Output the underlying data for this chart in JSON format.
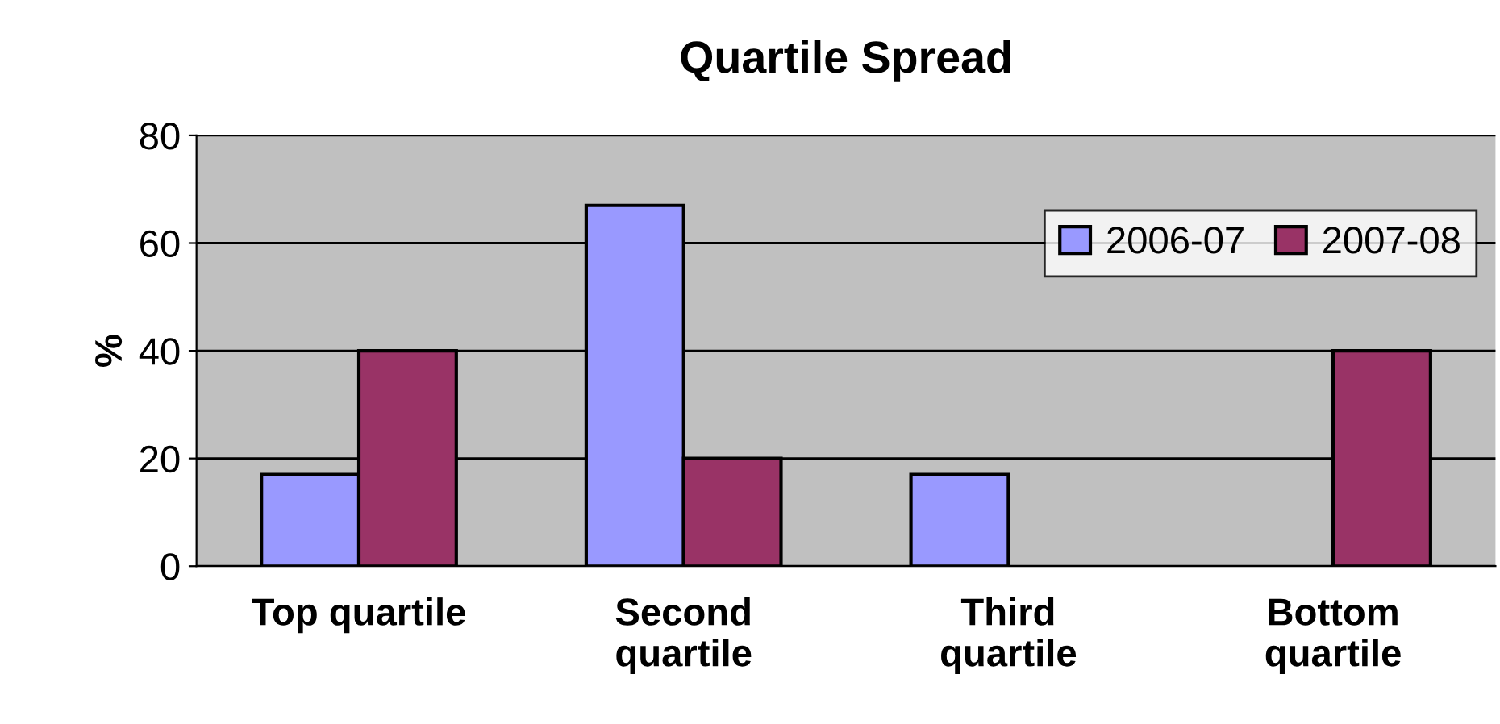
{
  "chart_data": {
    "type": "bar",
    "title": "Quartile Spread",
    "ylabel": "%",
    "categories": [
      "Top quartile",
      "Second\nquartile",
      "Third\nquartile",
      "Bottom\nquartile"
    ],
    "series": [
      {
        "name": "2006-07",
        "color": "#9999ff",
        "values": [
          17,
          67,
          17,
          null
        ]
      },
      {
        "name": "2007-08",
        "color": "#993366",
        "values": [
          40,
          20,
          null,
          40
        ]
      }
    ],
    "ylim": [
      0,
      80
    ],
    "yticks": [
      0,
      20,
      40,
      60,
      80
    ],
    "grid": "y",
    "legend": "top right"
  }
}
